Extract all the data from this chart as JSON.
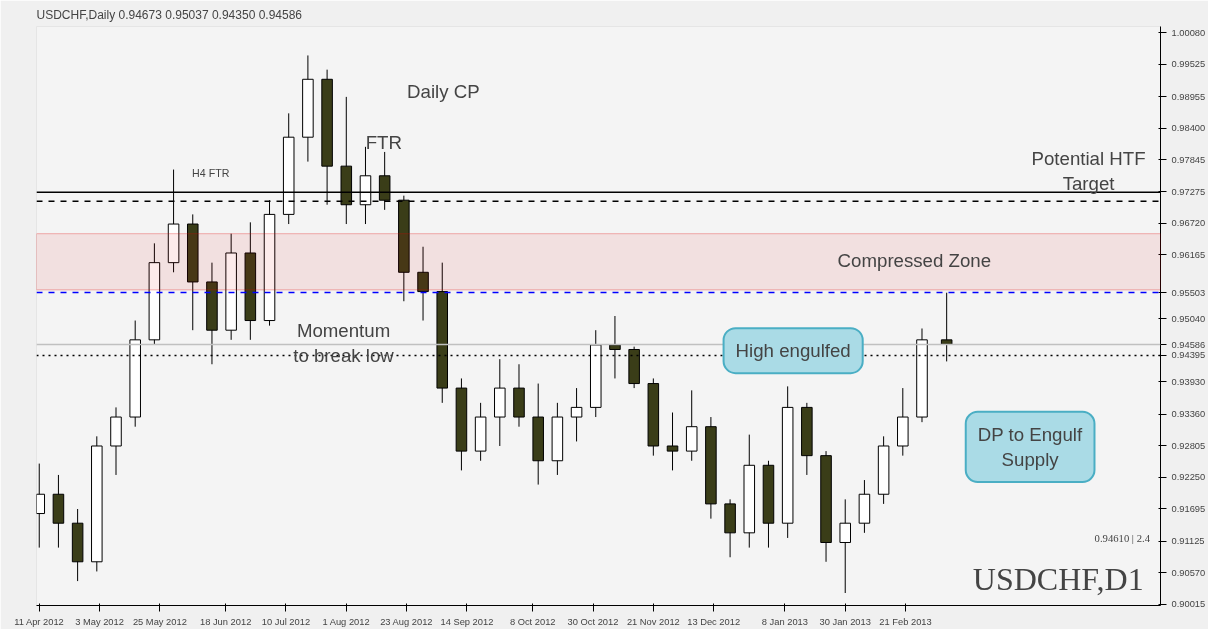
{
  "chart_data": {
    "type": "candlestick",
    "title": "USDCHF,Daily  0.94673 0.95037 0.94350 0.94586",
    "x": [
      "2012-04-11",
      "2012-04-18",
      "2012-04-25",
      "2012-05-02",
      "2012-05-09",
      "2012-05-16",
      "2012-05-23",
      "2012-05-30",
      "2012-06-06",
      "2012-06-13",
      "2012-06-20",
      "2012-06-27",
      "2012-07-04",
      "2012-07-11",
      "2012-07-18",
      "2012-07-25",
      "2012-08-01",
      "2012-08-08",
      "2012-08-15",
      "2012-08-22",
      "2012-08-29",
      "2012-09-05",
      "2012-09-12",
      "2012-09-19",
      "2012-09-26",
      "2012-10-03",
      "2012-10-10",
      "2012-10-17",
      "2012-10-24",
      "2012-10-31",
      "2012-11-07",
      "2012-11-14",
      "2012-11-21",
      "2012-11-28",
      "2012-12-05",
      "2012-12-12",
      "2012-12-19",
      "2012-12-26",
      "2013-01-02",
      "2013-01-09",
      "2013-01-16",
      "2013-01-23",
      "2013-01-30",
      "2013-02-06",
      "2013-02-13",
      "2013-02-20",
      "2013-02-27",
      "2013-03-08"
    ],
    "ohlc": [
      [
        0.9161,
        0.9249,
        0.9101,
        0.9195
      ],
      [
        0.9195,
        0.9229,
        0.9101,
        0.9144
      ],
      [
        0.9144,
        0.9169,
        0.9042,
        0.9076
      ],
      [
        0.9076,
        0.9297,
        0.9059,
        0.928
      ],
      [
        0.928,
        0.9348,
        0.9229,
        0.9331
      ],
      [
        0.9331,
        0.9501,
        0.9314,
        0.9467
      ],
      [
        0.9467,
        0.9637,
        0.9458,
        0.9603
      ],
      [
        0.9603,
        0.9767,
        0.9586,
        0.9671
      ],
      [
        0.9671,
        0.9688,
        0.9484,
        0.9569
      ],
      [
        0.9569,
        0.9603,
        0.9424,
        0.9484
      ],
      [
        0.9484,
        0.9654,
        0.9467,
        0.962
      ],
      [
        0.962,
        0.9674,
        0.9467,
        0.9501
      ],
      [
        0.9501,
        0.9713,
        0.9492,
        0.9688
      ],
      [
        0.9688,
        0.9866,
        0.9671,
        0.9824
      ],
      [
        0.9824,
        0.9968,
        0.9781,
        0.9926
      ],
      [
        0.9926,
        0.9943,
        0.9705,
        0.9773
      ],
      [
        0.9773,
        0.9895,
        0.9671,
        0.9705
      ],
      [
        0.9705,
        0.9807,
        0.9671,
        0.9756
      ],
      [
        0.9756,
        0.9798,
        0.9696,
        0.9713
      ],
      [
        0.9713,
        0.9721,
        0.9535,
        0.9586
      ],
      [
        0.9586,
        0.9631,
        0.9501,
        0.9552
      ],
      [
        0.9552,
        0.9603,
        0.9356,
        0.9382
      ],
      [
        0.9382,
        0.9399,
        0.9237,
        0.9271
      ],
      [
        0.9271,
        0.9356,
        0.9254,
        0.9331
      ],
      [
        0.9331,
        0.9433,
        0.928,
        0.9382
      ],
      [
        0.9382,
        0.9424,
        0.9314,
        0.9331
      ],
      [
        0.9331,
        0.939,
        0.9212,
        0.9254
      ],
      [
        0.9254,
        0.9356,
        0.9229,
        0.9331
      ],
      [
        0.9331,
        0.9382,
        0.9288,
        0.9348
      ],
      [
        0.9348,
        0.9484,
        0.9331,
        0.9458
      ],
      [
        0.9458,
        0.9509,
        0.9399,
        0.945
      ],
      [
        0.945,
        0.9455,
        0.9382,
        0.939
      ],
      [
        0.939,
        0.9399,
        0.9263,
        0.928
      ],
      [
        0.928,
        0.9339,
        0.9237,
        0.9271
      ],
      [
        0.9271,
        0.9378,
        0.9254,
        0.9314
      ],
      [
        0.9314,
        0.9331,
        0.9152,
        0.9178
      ],
      [
        0.9178,
        0.9186,
        0.9084,
        0.9127
      ],
      [
        0.9127,
        0.93,
        0.9101,
        0.9246
      ],
      [
        0.9246,
        0.9254,
        0.9101,
        0.9144
      ],
      [
        0.9144,
        0.9385,
        0.9118,
        0.9348
      ],
      [
        0.9348,
        0.9356,
        0.9229,
        0.9263
      ],
      [
        0.9263,
        0.9271,
        0.9076,
        0.911
      ],
      [
        0.911,
        0.9186,
        0.9021,
        0.9144
      ],
      [
        0.9144,
        0.922,
        0.9127,
        0.9195
      ],
      [
        0.9195,
        0.9297,
        0.9178,
        0.928
      ],
      [
        0.928,
        0.9382,
        0.9263,
        0.9331
      ],
      [
        0.9331,
        0.9487,
        0.9322,
        0.9467
      ],
      [
        0.9467,
        0.955,
        0.9429,
        0.9459
      ]
    ],
    "xlim": [
      "2012-04-10",
      "2013-05-25"
    ],
    "xticks": [
      {
        "value": "2012-04-11",
        "label": "11 Apr 2012"
      },
      {
        "value": "2012-05-03",
        "label": "3 May 2012"
      },
      {
        "value": "2012-05-25",
        "label": "25 May 2012"
      },
      {
        "value": "2012-06-18",
        "label": "18 Jun 2012"
      },
      {
        "value": "2012-07-10",
        "label": "10 Jul 2012"
      },
      {
        "value": "2012-08-01",
        "label": "1 Aug 2012"
      },
      {
        "value": "2012-08-23",
        "label": "23 Aug 2012"
      },
      {
        "value": "2012-09-14",
        "label": "14 Sep 2012"
      },
      {
        "value": "2012-10-08",
        "label": "8 Oct 2012"
      },
      {
        "value": "2012-10-30",
        "label": "30 Oct 2012"
      },
      {
        "value": "2012-11-21",
        "label": "21 Nov 2012"
      },
      {
        "value": "2012-12-13",
        "label": "13 Dec 2012"
      },
      {
        "value": "2013-01-08",
        "label": "8 Jan 2013"
      },
      {
        "value": "2013-01-30",
        "label": "30 Jan 2013"
      },
      {
        "value": "2013-02-21",
        "label": "21 Feb 2013"
      }
    ],
    "ylim": [
      0.8999,
      1.0019
    ],
    "yticks": [
      {
        "value": 1.0008,
        "label": "1.00080"
      },
      {
        "value": 0.99525,
        "label": "0.99525"
      },
      {
        "value": 0.98955,
        "label": "0.98955"
      },
      {
        "value": 0.984,
        "label": "0.98400"
      },
      {
        "value": 0.97845,
        "label": "0.97845"
      },
      {
        "value": 0.97275,
        "label": "0.97275"
      },
      {
        "value": 0.9672,
        "label": "0.96720"
      },
      {
        "value": 0.96165,
        "label": "0.96165"
      },
      {
        "value": 0.9504,
        "label": "0.95040"
      },
      {
        "value": 0.9393,
        "label": "0.93930"
      },
      {
        "value": 0.9336,
        "label": "0.93360"
      },
      {
        "value": 0.92805,
        "label": "0.92805"
      },
      {
        "value": 0.9225,
        "label": "0.92250"
      },
      {
        "value": 0.91695,
        "label": "0.91695"
      },
      {
        "value": 0.91125,
        "label": "0.91125"
      },
      {
        "value": 0.9057,
        "label": "0.90570"
      },
      {
        "value": 0.90015,
        "label": "0.90015"
      }
    ],
    "ref_lines": [
      {
        "axis": "y",
        "value": 0.95503,
        "label": "0.95503",
        "color": "#0000ff",
        "line_style": "dashed"
      },
      {
        "axis": "y",
        "value": 0.94586,
        "label": "0.94586",
        "color": "#c0c0c0",
        "line_style": "solid"
      },
      {
        "axis": "y",
        "value": 0.94395,
        "label": "0.94395",
        "color": "#000000",
        "line_style": "dotted"
      },
      {
        "axis": "y",
        "value": 0.9727,
        "color": "#000000",
        "line_style": "solid"
      },
      {
        "axis": "y",
        "value": 0.9711,
        "color": "#000000",
        "line_style": "dashed"
      }
    ],
    "bands": [
      {
        "axis": "y",
        "from": 0.9555,
        "to": 0.9654,
        "color": "#e00000"
      }
    ],
    "annotations": [
      "Daily CP",
      "FTR",
      "H4 FTR",
      "Potential HTF\nTarget",
      "Compressed Zone",
      {
        "text": "Momentum\nto break low",
        "x": "2012-07-31",
        "y": 0.9462
      },
      {
        "text": "High engulfed",
        "x": "2013-01-11",
        "y": 0.9448
      },
      "DP to Engulf\nSupply",
      "0.94610 | 2.4",
      "USDCHF,D1"
    ],
    "grid": false
  }
}
